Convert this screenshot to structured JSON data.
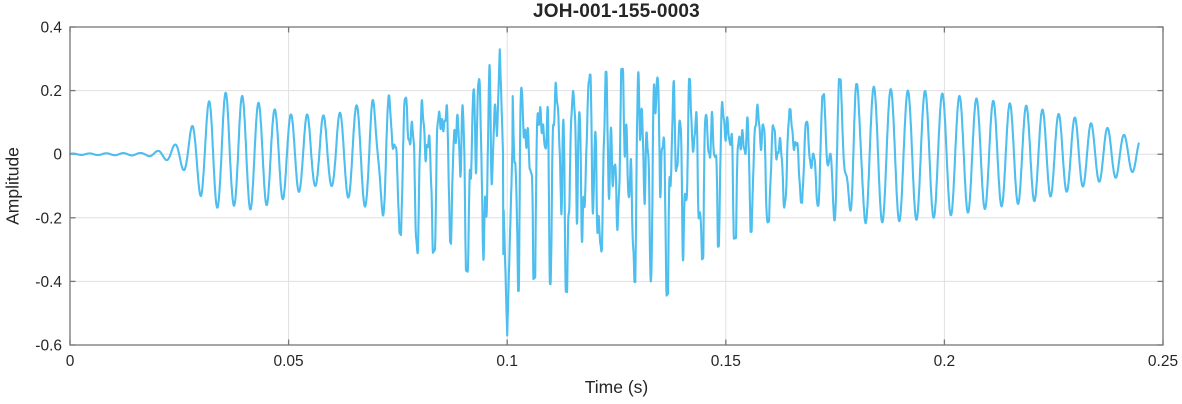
{
  "chart_data": {
    "type": "line",
    "title": "JOH-001-155-0003",
    "xlabel": "Time (s)",
    "ylabel": "Amplitude",
    "xlim": [
      0,
      0.25
    ],
    "ylim": [
      -0.6,
      0.4
    ],
    "grid": true,
    "box": true,
    "legend": "none",
    "x_ticks": {
      "values": [
        0,
        0.05,
        0.1,
        0.15,
        0.2,
        0.25
      ],
      "labels": [
        "0",
        "0.05",
        "0.1",
        "0.15",
        "0.2",
        "0.25"
      ]
    },
    "y_ticks": {
      "values": [
        0.4,
        0.2,
        0,
        -0.2,
        -0.4,
        -0.6
      ],
      "labels": [
        "0.4",
        "0.2",
        "0",
        "-0.2",
        "-0.4",
        "-0.6"
      ]
    },
    "colors": {
      "line": "#4DBEEE",
      "grid": "#E0E0E0",
      "axis": "#777777",
      "text": "#262626",
      "background": "#FFFFFF"
    },
    "signal": {
      "description": "Single-channel waveform: silent until ~0.02 s, smooth oscillatory burst (~262 Hz) peaking ~±0.19 near 0.035 s, dense broadband section 0.075-0.17 s with positive peaks up to +0.33 and a sharp negative spike to -0.57 at t=0.1 s, then a clean decaying oscillation ending near t=0.244 s",
      "start_time": 0,
      "end_time": 0.2445,
      "onset_time": 0.021,
      "base_frequency_hz": 262,
      "sample_dt": 5e-05,
      "max_spike": {
        "t": 0.0983,
        "value": 0.33,
        "half_width": 0.0008
      },
      "min_spike": {
        "t": 0.1,
        "value": -0.57,
        "half_width": 0.0012
      },
      "envelope": {
        "t": [
          0.0,
          0.017,
          0.02,
          0.022,
          0.024,
          0.026,
          0.028,
          0.03,
          0.033,
          0.037,
          0.041,
          0.045,
          0.05,
          0.055,
          0.06,
          0.065,
          0.07,
          0.074,
          0.078,
          0.082,
          0.086,
          0.09,
          0.094,
          0.098,
          0.1,
          0.103,
          0.107,
          0.111,
          0.115,
          0.119,
          0.123,
          0.127,
          0.131,
          0.135,
          0.139,
          0.143,
          0.147,
          0.151,
          0.155,
          0.159,
          0.163,
          0.167,
          0.171,
          0.175,
          0.18,
          0.185,
          0.19,
          0.195,
          0.2,
          0.205,
          0.21,
          0.215,
          0.22,
          0.225,
          0.23,
          0.234,
          0.238,
          0.242,
          0.2445
        ],
        "upper": [
          0.002,
          0.004,
          0.01,
          0.018,
          0.03,
          0.05,
          0.09,
          0.13,
          0.19,
          0.195,
          0.175,
          0.15,
          0.125,
          0.125,
          0.12,
          0.15,
          0.185,
          0.2,
          0.21,
          0.23,
          0.22,
          0.26,
          0.29,
          0.33,
          0.3,
          0.28,
          0.27,
          0.29,
          0.27,
          0.25,
          0.26,
          0.27,
          0.3,
          0.27,
          0.25,
          0.23,
          0.22,
          0.2,
          0.2,
          0.18,
          0.15,
          0.13,
          0.16,
          0.24,
          0.22,
          0.21,
          0.2,
          0.2,
          0.19,
          0.18,
          0.17,
          0.16,
          0.15,
          0.13,
          0.115,
          0.095,
          0.08,
          0.055,
          0.05
        ],
        "lower": [
          -0.002,
          -0.004,
          -0.01,
          -0.018,
          -0.03,
          -0.05,
          -0.08,
          -0.135,
          -0.17,
          -0.16,
          -0.175,
          -0.16,
          -0.135,
          -0.1,
          -0.1,
          -0.15,
          -0.18,
          -0.22,
          -0.3,
          -0.33,
          -0.25,
          -0.36,
          -0.4,
          -0.43,
          -0.43,
          -0.43,
          -0.38,
          -0.42,
          -0.44,
          -0.38,
          -0.4,
          -0.38,
          -0.42,
          -0.47,
          -0.4,
          -0.35,
          -0.3,
          -0.27,
          -0.25,
          -0.22,
          -0.18,
          -0.15,
          -0.18,
          -0.23,
          -0.22,
          -0.215,
          -0.21,
          -0.205,
          -0.195,
          -0.185,
          -0.17,
          -0.16,
          -0.15,
          -0.13,
          -0.11,
          -0.09,
          -0.08,
          -0.06,
          -0.05
        ],
        "note": "upper/lower are the visible peak envelopes of the waveform in Amplitude units"
      },
      "texture_components": [
        {
          "freq": 262,
          "amp": 1.0,
          "phase": 0.0,
          "wobble": [
            0.5,
            17,
            1.0
          ]
        },
        {
          "freq": 523,
          "amp": 0.75,
          "phase": 1.3,
          "gate": [
            0.072,
            0.178
          ]
        },
        {
          "freq": 829,
          "amp": 0.5,
          "phase": 4.2,
          "gate": [
            0.085,
            0.158
          ]
        },
        {
          "freq": 127,
          "amp": 0.3,
          "phase": 2.0,
          "gate": [
            0.078,
            0.172
          ]
        },
        {
          "freq": 1117,
          "amp": 0.3,
          "phase": 0.7,
          "gate": [
            0.09,
            0.15
          ]
        },
        {
          "freq": 1733,
          "amp": 0.12,
          "phase": 5.1,
          "gate": [
            0.075,
            0.17
          ]
        }
      ]
    }
  }
}
